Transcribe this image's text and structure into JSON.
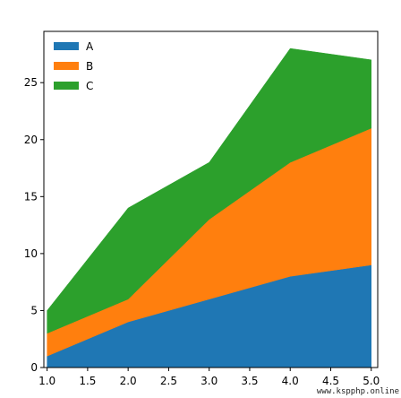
{
  "chart_data": {
    "type": "area",
    "stacked": true,
    "x": [
      1.0,
      2.0,
      3.0,
      4.0,
      5.0
    ],
    "series": [
      {
        "name": "A",
        "color": "#1f77b4",
        "values": [
          1,
          4,
          6,
          8,
          9
        ]
      },
      {
        "name": "B",
        "color": "#ff7f0e",
        "values": [
          2,
          2,
          7,
          10,
          12
        ]
      },
      {
        "name": "C",
        "color": "#2ca02c",
        "values": [
          2,
          8,
          5,
          10,
          6
        ]
      }
    ],
    "xlim": [
      0.96,
      5.08
    ],
    "ylim": [
      0,
      29.5
    ],
    "xticks": [
      "1.0",
      "1.5",
      "2.0",
      "2.5",
      "3.0",
      "3.5",
      "4.0",
      "4.5",
      "5.0"
    ],
    "yticks": [
      "0",
      "5",
      "10",
      "15",
      "20",
      "25"
    ],
    "legend_position": "upper-left",
    "grid": false
  },
  "watermark": "www.kspphp.online"
}
